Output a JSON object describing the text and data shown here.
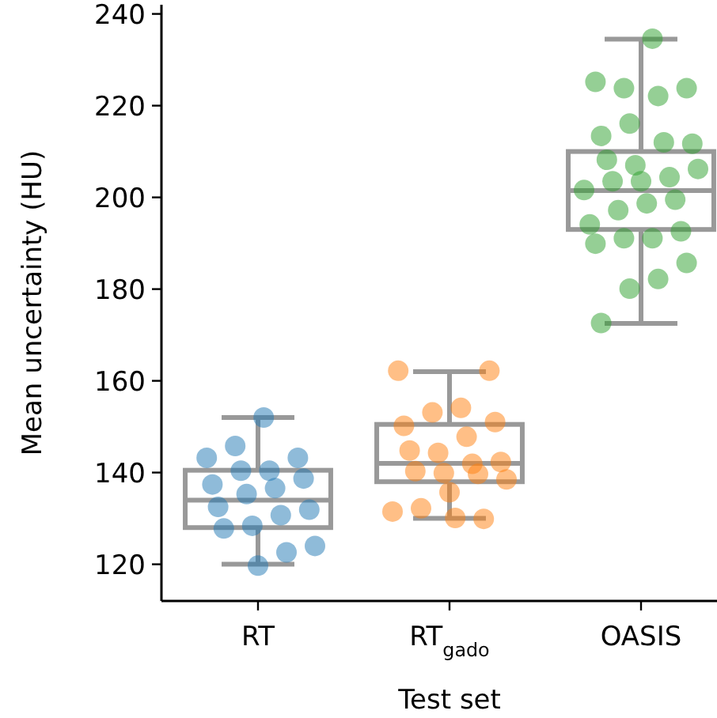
{
  "chart_data": {
    "type": "box",
    "xlabel": "Test set",
    "ylabel": "Mean uncertainty (HU)",
    "categories": [
      "RT",
      "RT$_{gado}$",
      "OASIS"
    ],
    "ylim": [
      112,
      242
    ],
    "yticks": [
      120,
      140,
      160,
      180,
      200,
      220,
      240
    ],
    "grid": false,
    "series": [
      {
        "color": "#999999",
        "boxes": [
          {
            "low": 120,
            "q1": 128,
            "median": 134,
            "q3": 140.5,
            "high": 152
          },
          {
            "low": 130,
            "q1": 138,
            "median": 142,
            "q3": 150.5,
            "high": 162
          },
          {
            "low": 172.5,
            "q1": 193,
            "median": 201.5,
            "q3": 210,
            "high": 234.5
          }
        ]
      },
      {
        "type": "scatter",
        "color": "#1f77b4",
        "x": [
          "RT",
          "RT",
          "RT",
          "RT",
          "RT",
          "RT",
          "RT",
          "RT",
          "RT",
          "RT",
          "RT",
          "RT",
          "RT",
          "RT",
          "RT",
          "RT",
          "RT",
          "RT"
        ],
        "values": [
          152,
          145.8,
          143.2,
          143.2,
          140.4,
          140.4,
          137.4,
          138.7,
          136.6,
          135.3,
          132.5,
          131.9,
          130.7,
          128.4,
          127.8,
          124,
          122.6,
          119.7
        ]
      },
      {
        "type": "scatter",
        "color": "#ff7f0e",
        "x": [
          "RT$_{gado}$",
          "RT$_{gado}$",
          "RT$_{gado}$",
          "RT$_{gado}$",
          "RT$_{gado}$",
          "RT$_{gado}$",
          "RT$_{gado}$",
          "RT$_{gado}$",
          "RT$_{gado}$",
          "RT$_{gado}$",
          "RT$_{gado}$",
          "RT$_{gado}$",
          "RT$_{gado}$",
          "RT$_{gado}$",
          "RT$_{gado}$",
          "RT$_{gado}$",
          "RT$_{gado}$",
          "RT$_{gado}$",
          "RT$_{gado}$",
          "RT$_{gado}$"
        ],
        "values": [
          162.2,
          162.2,
          154.1,
          153.1,
          150.2,
          151,
          147.8,
          144.3,
          144.8,
          142.3,
          141.9,
          139.9,
          140.3,
          138.5,
          139.7,
          135.7,
          132.2,
          131.5,
          129.9,
          130.1
        ]
      },
      {
        "type": "scatter",
        "color": "#2ca02c",
        "x": [
          "OASIS",
          "OASIS",
          "OASIS",
          "OASIS",
          "OASIS",
          "OASIS",
          "OASIS",
          "OASIS",
          "OASIS",
          "OASIS",
          "OASIS",
          "OASIS",
          "OASIS",
          "OASIS",
          "OASIS",
          "OASIS",
          "OASIS",
          "OASIS",
          "OASIS",
          "OASIS",
          "OASIS",
          "OASIS",
          "OASIS",
          "OASIS",
          "OASIS",
          "OASIS",
          "OASIS",
          "OASIS"
        ],
        "values": [
          234.6,
          223.8,
          225.2,
          223.8,
          222.1,
          216.1,
          213.4,
          211.7,
          212,
          207,
          208.2,
          206.2,
          204.4,
          203.5,
          203.5,
          201.6,
          199.5,
          198.7,
          197.2,
          194.1,
          192.6,
          191.1,
          191.1,
          189.9,
          185.7,
          182.2,
          180.1,
          172.6
        ]
      }
    ]
  }
}
